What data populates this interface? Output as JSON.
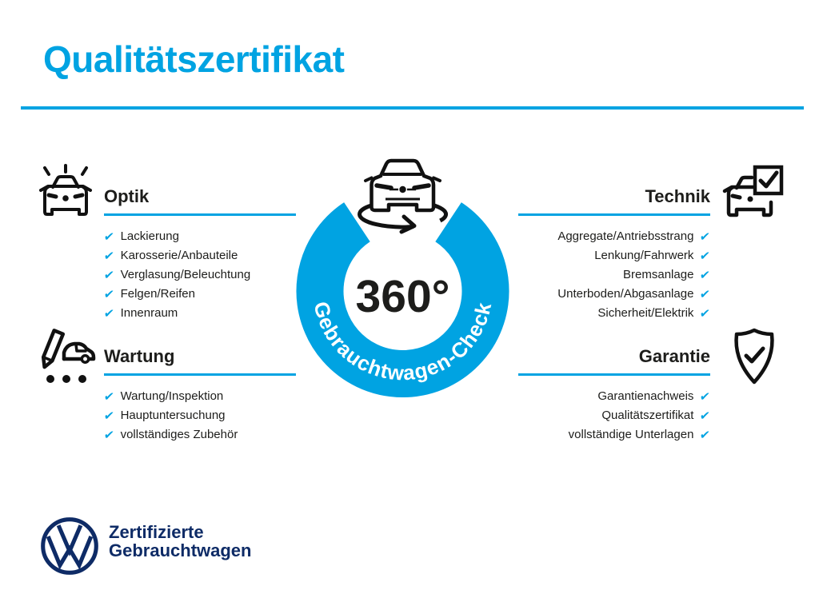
{
  "title": "Qualitätszertifikat",
  "colors": {
    "accent_blue": "#00a3e2",
    "navy_blue": "#0e2b66",
    "text_dark": "#1d1d1b"
  },
  "center": {
    "degree_label": "360°",
    "ring_label": "Gebrauchtwagen-Check"
  },
  "checkmark_glyph": "✔",
  "sections": [
    {
      "id": "optik",
      "title": "Optik",
      "align": "left",
      "icon": "shiny-car-icon",
      "items": [
        "Lackierung",
        "Karosserie/Anbauteile",
        "Verglasung/Beleuchtung",
        "Felgen/Reifen",
        "Innenraum"
      ]
    },
    {
      "id": "technik",
      "title": "Technik",
      "align": "right",
      "icon": "car-checkbox-icon",
      "items": [
        "Aggregate/Antriebsstrang",
        "Lenkung/Fahrwerk",
        "Bremsanlage",
        "Unterboden/Abgasanlage",
        "Sicherheit/Elektrik"
      ]
    },
    {
      "id": "wartung",
      "title": "Wartung",
      "align": "left",
      "icon": "pencil-car-icon",
      "items": [
        "Wartung/Inspektion",
        "Hauptuntersuchung",
        "vollständiges Zubehör"
      ]
    },
    {
      "id": "garantie",
      "title": "Garantie",
      "align": "right",
      "icon": "shield-check-icon",
      "items": [
        "Garantienachweis",
        "Qualitätszertifikat",
        "vollständige Unterlagen"
      ]
    }
  ],
  "footer": {
    "brand_line1": "Zertifizierte",
    "brand_line2": "Gebrauchtwagen"
  }
}
